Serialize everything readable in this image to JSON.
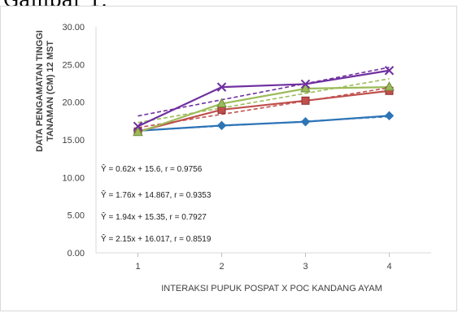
{
  "caption": "Gambar 1.",
  "chart_data": {
    "type": "line",
    "title": "",
    "xlabel": "INTERAKSI PUPUK POSPAT X POC KANDANG AYAM",
    "ylabel_lines": [
      "DATA PENGAMATAN TINGGI",
      "TANAMAN (CM) 12 MST"
    ],
    "x": [
      1,
      2,
      3,
      4
    ],
    "x_tick_labels": [
      "1",
      "2",
      "3",
      "4"
    ],
    "ylim": [
      0,
      30
    ],
    "y_tick_labels": [
      "0.00",
      "5.00",
      "10.00",
      "15.00",
      "20.00",
      "25.00",
      "30.00"
    ],
    "grid": false,
    "series": [
      {
        "values": [
          16.2,
          16.9,
          17.4,
          18.2
        ],
        "marker": "diamond",
        "color": "#2e75b6"
      },
      {
        "values": [
          16.1,
          19.0,
          20.2,
          21.5
        ],
        "marker": "square",
        "color": "#c0504d"
      },
      {
        "values": [
          16.0,
          19.8,
          21.8,
          22.0
        ],
        "marker": "triangle",
        "color": "#9bbb59"
      },
      {
        "values": [
          16.8,
          22.0,
          22.4,
          24.2
        ],
        "marker": "x",
        "color": "#7030a0"
      }
    ],
    "trendlines": [
      {
        "slope": 0.62,
        "intercept": 15.6,
        "color": "#2e75b6"
      },
      {
        "slope": 1.76,
        "intercept": 14.867,
        "color": "#c0504d"
      },
      {
        "slope": 1.94,
        "intercept": 15.35,
        "color": "#9bbb59"
      },
      {
        "slope": 2.15,
        "intercept": 16.017,
        "color": "#7030a0"
      }
    ],
    "annotations": [
      "Ŷ = 0.62x + 15.6, r = 0.9756",
      "Ŷ = 1.76x + 14.867, r = 0.9353",
      "Ŷ = 1.94x + 15.35, r = 0.7927",
      "Ŷ = 2.15x + 16.017, r = 0.8519"
    ]
  }
}
